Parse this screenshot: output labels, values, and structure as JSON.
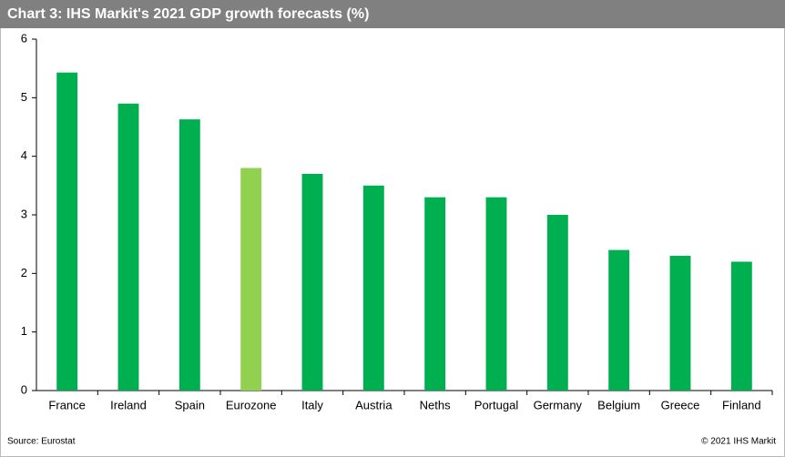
{
  "chart_data": {
    "type": "bar",
    "title": "Chart 3: IHS Markit's 2021 GDP growth forecasts (%)",
    "categories": [
      "France",
      "Ireland",
      "Spain",
      "Eurozone",
      "Italy",
      "Austria",
      "Neths",
      "Portugal",
      "Germany",
      "Belgium",
      "Greece",
      "Finland"
    ],
    "values": [
      5.43,
      4.9,
      4.63,
      3.8,
      3.7,
      3.5,
      3.3,
      3.3,
      3.0,
      2.4,
      2.3,
      2.2
    ],
    "colors": [
      "#00b050",
      "#00b050",
      "#00b050",
      "#92d050",
      "#00b050",
      "#00b050",
      "#00b050",
      "#00b050",
      "#00b050",
      "#00b050",
      "#00b050",
      "#00b050"
    ],
    "ylim": [
      0,
      6
    ],
    "yticks": [
      0,
      1,
      2,
      3,
      4,
      5,
      6
    ],
    "grid": false,
    "source": "Source: Eurostat",
    "copyright": "© 2021 IHS Markit"
  }
}
